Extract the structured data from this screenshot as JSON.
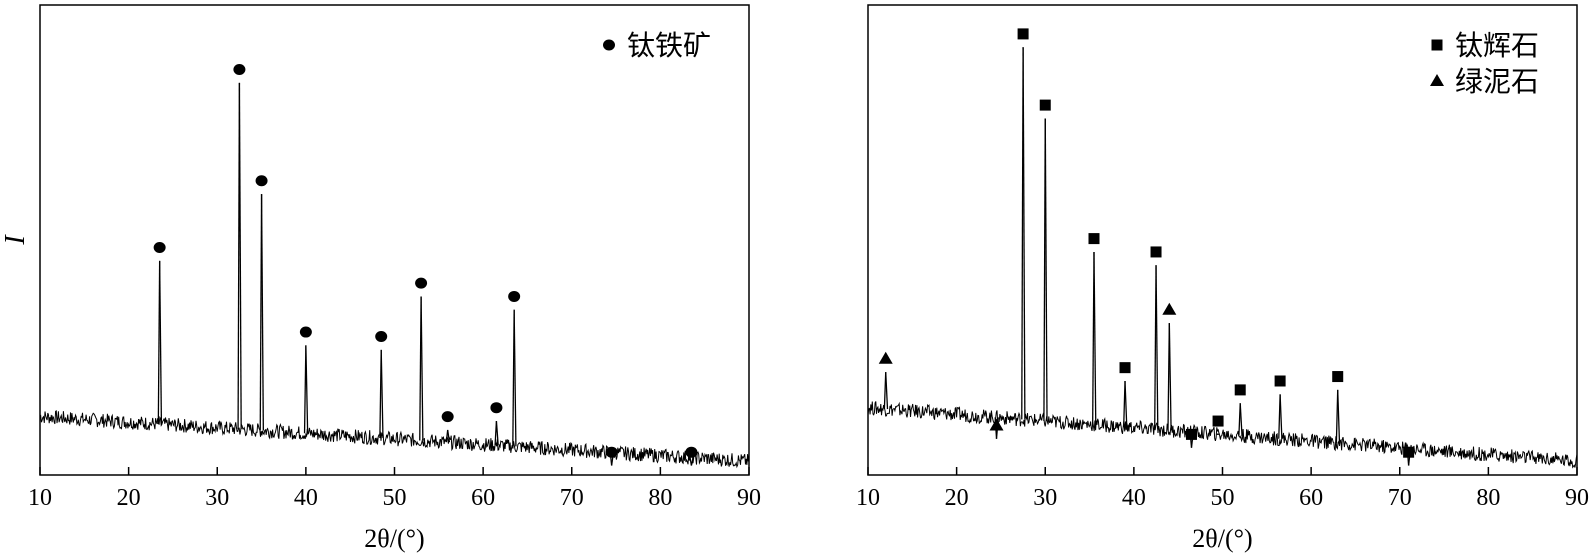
{
  "chart_data": [
    {
      "type": "line",
      "title": "",
      "xlabel": "2θ/(°)",
      "ylabel": "I",
      "xlim": [
        10,
        90
      ],
      "ylim": [
        0,
        100
      ],
      "xticks": [
        "10",
        "20",
        "30",
        "40",
        "50",
        "60",
        "70",
        "80",
        "90"
      ],
      "grid": false,
      "legend_position": "top-right",
      "legend": [
        {
          "marker": "circle",
          "label": "钛铁矿"
        }
      ],
      "series": [
        {
          "marker": "circle",
          "peaks": [
            {
              "x": 23.5,
              "y": 50
            },
            {
              "x": 32.5,
              "y": 90
            },
            {
              "x": 35.0,
              "y": 65
            },
            {
              "x": 40.0,
              "y": 31
            },
            {
              "x": 48.5,
              "y": 30
            },
            {
              "x": 53.0,
              "y": 42
            },
            {
              "x": 56.0,
              "y": 12
            },
            {
              "x": 61.5,
              "y": 14
            },
            {
              "x": 63.5,
              "y": 39
            },
            {
              "x": 74.5,
              "y": 4
            },
            {
              "x": 83.5,
              "y": 4
            }
          ]
        }
      ],
      "baseline": {
        "start": 12,
        "end": 2
      }
    },
    {
      "type": "line",
      "title": "",
      "xlabel": "2θ/(°)",
      "ylabel": "",
      "xlim": [
        10,
        90
      ],
      "ylim": [
        0,
        100
      ],
      "xticks": [
        "10",
        "20",
        "30",
        "40",
        "50",
        "60",
        "70",
        "80",
        "90"
      ],
      "grid": false,
      "legend_position": "top-right",
      "legend": [
        {
          "marker": "square",
          "label": "钛辉石"
        },
        {
          "marker": "triangle",
          "label": "绿泥石"
        }
      ],
      "series": [
        {
          "marker": "square",
          "peaks": [
            {
              "x": 27.5,
              "y": 98
            },
            {
              "x": 30.0,
              "y": 82
            },
            {
              "x": 35.5,
              "y": 52
            },
            {
              "x": 39.0,
              "y": 23
            },
            {
              "x": 42.5,
              "y": 49
            },
            {
              "x": 46.5,
              "y": 8
            },
            {
              "x": 49.5,
              "y": 11
            },
            {
              "x": 52.0,
              "y": 18
            },
            {
              "x": 56.5,
              "y": 20
            },
            {
              "x": 63.0,
              "y": 21
            },
            {
              "x": 71.0,
              "y": 4
            }
          ]
        },
        {
          "marker": "triangle",
          "peaks": [
            {
              "x": 12.0,
              "y": 25
            },
            {
              "x": 24.5,
              "y": 10
            },
            {
              "x": 44.0,
              "y": 36
            }
          ]
        }
      ],
      "baseline": {
        "start": 14,
        "end": 2
      }
    }
  ]
}
